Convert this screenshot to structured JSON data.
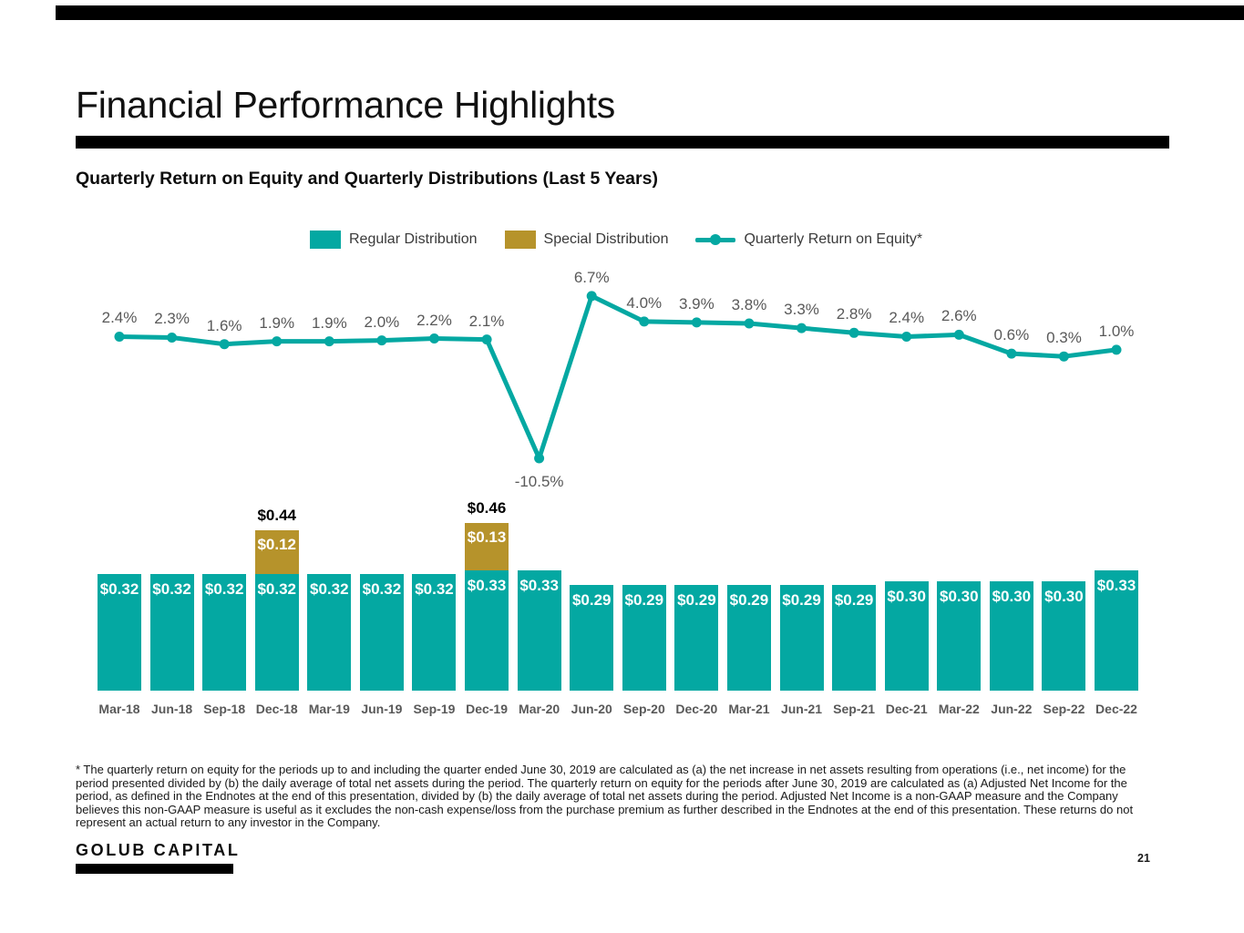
{
  "header": {
    "title": "Financial Performance Highlights"
  },
  "chart_title": "Quarterly Return on Equity and Quarterly Distributions (Last 5 Years)",
  "legend": [
    {
      "label": "Regular Distribution",
      "swatch": "teal-square"
    },
    {
      "label": "Special Distribution",
      "swatch": "gold-square"
    },
    {
      "label": "Quarterly Return on Equity*",
      "swatch": "teal-line-marker"
    }
  ],
  "colors": {
    "teal": "#04A8A2",
    "gold": "#B6932B",
    "label_gray": "#595959",
    "bar_label_white": "#ffffff",
    "black": "#000000"
  },
  "chart_data": {
    "type": "combo-stacked-bar-line",
    "categories": [
      "Mar-18",
      "Jun-18",
      "Sep-18",
      "Dec-18",
      "Mar-19",
      "Jun-19",
      "Sep-19",
      "Dec-19",
      "Mar-20",
      "Jun-20",
      "Sep-20",
      "Dec-20",
      "Mar-21",
      "Jun-21",
      "Sep-21",
      "Dec-21",
      "Mar-22",
      "Jun-22",
      "Sep-22",
      "Dec-22"
    ],
    "series": [
      {
        "name": "Regular Distribution",
        "type": "bar",
        "stack": "distributions",
        "color": "#04A8A2",
        "values": [
          0.32,
          0.32,
          0.32,
          0.32,
          0.32,
          0.32,
          0.32,
          0.33,
          0.33,
          0.29,
          0.29,
          0.29,
          0.29,
          0.29,
          0.29,
          0.3,
          0.3,
          0.3,
          0.3,
          0.33
        ],
        "labels": [
          "$0.32",
          "$0.32",
          "$0.32",
          "$0.32",
          "$0.32",
          "$0.32",
          "$0.32",
          "$0.33",
          "$0.33",
          "$0.29",
          "$0.29",
          "$0.29",
          "$0.29",
          "$0.29",
          "$0.29",
          "$0.30",
          "$0.30",
          "$0.30",
          "$0.30",
          "$0.33"
        ]
      },
      {
        "name": "Special Distribution",
        "type": "bar",
        "stack": "distributions",
        "color": "#B6932B",
        "values": [
          0,
          0,
          0,
          0.12,
          0,
          0,
          0,
          0.13,
          0,
          0,
          0,
          0,
          0,
          0,
          0,
          0,
          0,
          0,
          0,
          0
        ],
        "labels": [
          null,
          null,
          null,
          "$0.12",
          null,
          null,
          null,
          "$0.13",
          null,
          null,
          null,
          null,
          null,
          null,
          null,
          null,
          null,
          null,
          null,
          null
        ]
      },
      {
        "name": "Quarterly Return on Equity*",
        "type": "line",
        "color": "#04A8A2",
        "values": [
          2.4,
          2.3,
          1.6,
          1.9,
          1.9,
          2.0,
          2.2,
          2.1,
          -10.5,
          6.7,
          4.0,
          3.9,
          3.8,
          3.3,
          2.8,
          2.4,
          2.6,
          0.6,
          0.3,
          1.0
        ],
        "labels": [
          "2.4%",
          "2.3%",
          "1.6%",
          "1.9%",
          "1.9%",
          "2.0%",
          "2.2%",
          "2.1%",
          "-10.5%",
          "6.7%",
          "4.0%",
          "3.9%",
          "3.8%",
          "3.3%",
          "2.8%",
          "2.4%",
          "2.6%",
          "0.6%",
          "0.3%",
          "1.0%"
        ]
      }
    ],
    "stack_total_labels": [
      null,
      null,
      null,
      "$0.44",
      null,
      null,
      null,
      "$0.46",
      null,
      null,
      null,
      null,
      null,
      null,
      null,
      null,
      null,
      null,
      null,
      null
    ],
    "title": "Quarterly Return on Equity and Quarterly Distributions (Last 5 Years)",
    "xlabel": "",
    "ylabel": "",
    "grid": false,
    "legend_position": "top-center"
  },
  "footnote": {
    "lines": [
      "* The quarterly return on equity for the periods up to and including the quarter ended June 30, 2019 are calculated as (a) the net increase in net assets resulting from operations (i.e., net income) for the",
      "period presented divided by (b) the daily average of total net assets during the period. The quarterly return on equity for the periods after June 30, 2019 are calculated as (a) Adjusted Net Income for the",
      "period, as defined in the Endnotes at the end of this presentation, divided by (b) the daily average of total net assets during the period. Adjusted Net Income is a non-GAAP measure and the Company",
      "believes this non-GAAP measure is useful as it excludes the non-cash expense/loss from the purchase premium as further described in the Endnotes at the end of this presentation. These returns do not",
      "represent an actual return to any investor in the Company."
    ]
  },
  "footer": {
    "logo_text": "GOLUB CAPITAL",
    "page_number": "21"
  }
}
